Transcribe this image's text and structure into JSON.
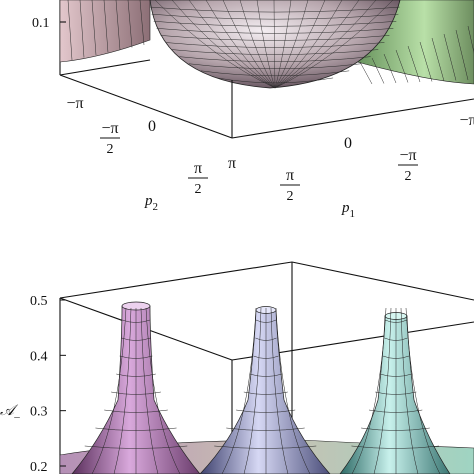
{
  "chart_data": [
    {
      "type": "surface",
      "xlabel": "p",
      "xlabel_sub": "2",
      "ylabel": "p",
      "ylabel_sub": "1",
      "zticks": [
        "0.1"
      ],
      "p2_ticks": [
        {
          "num": "−π",
          "den": ""
        },
        {
          "num": "−π",
          "den": "2"
        },
        {
          "num": "0",
          "den": ""
        },
        {
          "num": "π",
          "den": "2"
        },
        {
          "num": "π",
          "den": ""
        }
      ],
      "p1_ticks": [
        {
          "num": "π",
          "den": "2"
        },
        {
          "num": "0",
          "den": ""
        },
        {
          "num": "−π",
          "den": "2"
        },
        {
          "num": "−π",
          "den": ""
        }
      ]
    },
    {
      "type": "surface",
      "zlabel": "𝒜",
      "zlabel_sub": "–",
      "zticks": [
        "0.5",
        "0.4",
        "0.3",
        "0.2"
      ],
      "peaks": [
        {
          "p1": "−π",
          "p2": "−π",
          "color": "#c58fc8"
        },
        {
          "p1": "0",
          "p2": "−π",
          "color": "#aab0e0"
        },
        {
          "p1": "π",
          "p2": "−π",
          "color": "#8fd6cf"
        }
      ],
      "zlim": [
        0.2,
        0.5
      ]
    }
  ]
}
